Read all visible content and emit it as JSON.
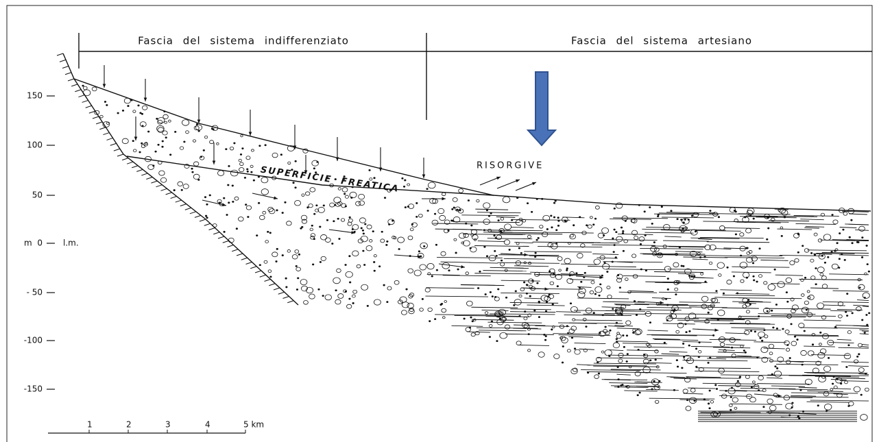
{
  "header": {
    "left_band": "Fascia del sistema indifferenziato",
    "right_band": "Fascia del sistema artesiano"
  },
  "labels": {
    "springs": "RISORGIVE",
    "water_table": "SUPERFICIE  FREATICA",
    "sea_level": "l.m."
  },
  "elevation_axis": [
    "150",
    "100",
    "50",
    "m  0",
    "- 50",
    "-100",
    "-150"
  ],
  "scale_bar": [
    "1",
    "2",
    "3",
    "4",
    "5 km"
  ]
}
